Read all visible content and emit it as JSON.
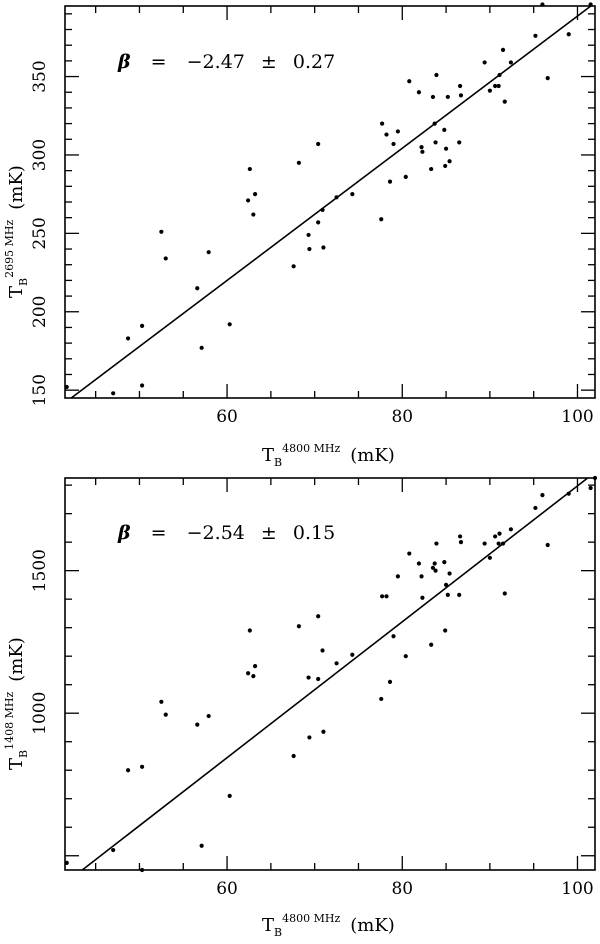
{
  "chart_data": [
    {
      "type": "scatter",
      "panel": "top",
      "xlabel": {
        "symbol": "T",
        "sub": "B",
        "sup": "4800 MHz",
        "unit": "(mK)"
      },
      "ylabel": {
        "symbol": "T",
        "sub": "B",
        "sup": "2695 MHz",
        "unit": "(mK)"
      },
      "xlim": [
        41.5,
        102
      ],
      "ylim": [
        145,
        395
      ],
      "xticks": [
        60,
        80,
        100
      ],
      "yticks": [
        150,
        200,
        250,
        300,
        350
      ],
      "annotation": {
        "beta": "β",
        "eq": "=",
        "value": "−2.47",
        "pm": "±",
        "err": "0.27"
      },
      "fit_line": {
        "x": [
          41.5,
          102
        ],
        "y": [
          142,
          397
        ]
      },
      "points": [
        [
          41.7,
          152
        ],
        [
          47.0,
          148
        ],
        [
          48.7,
          183
        ],
        [
          50.3,
          191
        ],
        [
          50.3,
          153
        ],
        [
          52.5,
          251
        ],
        [
          53.0,
          234
        ],
        [
          56.6,
          215
        ],
        [
          57.1,
          177
        ],
        [
          57.9,
          238
        ],
        [
          60.3,
          192
        ],
        [
          62.4,
          271
        ],
        [
          62.6,
          291
        ],
        [
          63.0,
          262
        ],
        [
          63.2,
          275
        ],
        [
          67.6,
          229
        ],
        [
          68.2,
          295
        ],
        [
          69.3,
          249
        ],
        [
          69.4,
          240
        ],
        [
          70.4,
          307
        ],
        [
          70.4,
          257
        ],
        [
          70.9,
          265
        ],
        [
          71.0,
          241
        ],
        [
          72.5,
          273
        ],
        [
          74.3,
          275
        ],
        [
          77.6,
          259
        ],
        [
          77.7,
          320
        ],
        [
          78.2,
          313
        ],
        [
          78.6,
          283
        ],
        [
          79.0,
          307
        ],
        [
          79.5,
          315
        ],
        [
          80.4,
          286
        ],
        [
          80.8,
          347
        ],
        [
          81.9,
          340
        ],
        [
          82.2,
          305
        ],
        [
          82.3,
          302
        ],
        [
          83.3,
          291
        ],
        [
          83.5,
          337
        ],
        [
          83.7,
          320
        ],
        [
          83.8,
          308
        ],
        [
          83.9,
          351
        ],
        [
          84.8,
          316
        ],
        [
          84.9,
          293
        ],
        [
          85.0,
          304
        ],
        [
          85.2,
          337
        ],
        [
          85.4,
          296
        ],
        [
          86.5,
          308
        ],
        [
          86.6,
          344
        ],
        [
          86.7,
          338
        ],
        [
          89.4,
          359
        ],
        [
          90.0,
          341
        ],
        [
          90.6,
          344
        ],
        [
          91.0,
          344
        ],
        [
          91.1,
          351
        ],
        [
          91.5,
          367
        ],
        [
          91.7,
          334
        ],
        [
          92.4,
          359
        ],
        [
          95.2,
          376
        ],
        [
          96.0,
          396
        ],
        [
          96.6,
          349
        ],
        [
          99.0,
          377
        ],
        [
          101.5,
          396
        ]
      ]
    },
    {
      "type": "scatter",
      "panel": "bottom",
      "xlabel": {
        "symbol": "T",
        "sub": "B",
        "sup": "4800 MHz",
        "unit": "(mK)"
      },
      "ylabel": {
        "symbol": "T",
        "sub": "B",
        "sup": "1408 MHz",
        "unit": "(mK)"
      },
      "xlim": [
        41.5,
        102
      ],
      "ylim": [
        450,
        1825
      ],
      "xticks": [
        60,
        80,
        100
      ],
      "yticks": [
        1000,
        1500
      ],
      "annotation": {
        "beta": "β",
        "eq": "=",
        "value": "−2.54",
        "pm": "±",
        "err": "0.15"
      },
      "fit_line": {
        "x": [
          41.5,
          102
        ],
        "y": [
          403,
          1845
        ]
      },
      "points": [
        [
          41.7,
          475
        ],
        [
          47.0,
          520
        ],
        [
          48.7,
          800
        ],
        [
          50.3,
          812
        ],
        [
          50.3,
          450
        ],
        [
          52.5,
          1040
        ],
        [
          53.0,
          995
        ],
        [
          56.6,
          960
        ],
        [
          57.1,
          535
        ],
        [
          57.9,
          990
        ],
        [
          60.3,
          710
        ],
        [
          62.4,
          1140
        ],
        [
          62.6,
          1290
        ],
        [
          63.0,
          1130
        ],
        [
          63.2,
          1165
        ],
        [
          67.6,
          850
        ],
        [
          68.2,
          1305
        ],
        [
          69.3,
          1125
        ],
        [
          69.4,
          915
        ],
        [
          70.4,
          1340
        ],
        [
          70.4,
          1120
        ],
        [
          70.9,
          1220
        ],
        [
          71.0,
          935
        ],
        [
          72.5,
          1175
        ],
        [
          74.3,
          1205
        ],
        [
          77.6,
          1050
        ],
        [
          77.7,
          1410
        ],
        [
          78.2,
          1410
        ],
        [
          78.6,
          1110
        ],
        [
          79.0,
          1270
        ],
        [
          79.5,
          1480
        ],
        [
          80.4,
          1200
        ],
        [
          80.8,
          1560
        ],
        [
          81.9,
          1525
        ],
        [
          82.2,
          1480
        ],
        [
          82.3,
          1405
        ],
        [
          83.3,
          1240
        ],
        [
          83.5,
          1510
        ],
        [
          83.7,
          1525
        ],
        [
          83.8,
          1500
        ],
        [
          83.9,
          1595
        ],
        [
          84.8,
          1530
        ],
        [
          84.9,
          1290
        ],
        [
          85.0,
          1450
        ],
        [
          85.2,
          1415
        ],
        [
          85.4,
          1490
        ],
        [
          86.5,
          1415
        ],
        [
          86.6,
          1620
        ],
        [
          86.7,
          1600
        ],
        [
          89.4,
          1595
        ],
        [
          90.0,
          1545
        ],
        [
          90.6,
          1620
        ],
        [
          91.0,
          1595
        ],
        [
          91.1,
          1630
        ],
        [
          91.5,
          1595
        ],
        [
          91.7,
          1420
        ],
        [
          92.4,
          1645
        ],
        [
          95.2,
          1720
        ],
        [
          96.0,
          1765
        ],
        [
          96.6,
          1590
        ],
        [
          99.0,
          1770
        ],
        [
          101.5,
          1790
        ],
        [
          102.0,
          1825
        ]
      ]
    }
  ]
}
